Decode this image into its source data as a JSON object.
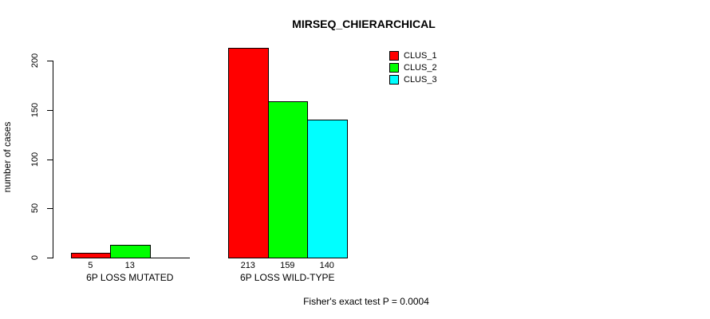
{
  "chart_data": {
    "type": "bar",
    "title": "MIRSEQ_CHIERARCHICAL",
    "ylabel": "number of cases",
    "xlabel": "",
    "yticks": [
      0,
      50,
      100,
      150,
      200
    ],
    "ylim": [
      0,
      213
    ],
    "grid": false,
    "legend_position": "top-right",
    "categories": [
      "6P LOSS MUTATED",
      "6P LOSS WILD-TYPE"
    ],
    "series": [
      {
        "name": "CLUS_1",
        "color": "#FF0000",
        "values": [
          5,
          213
        ]
      },
      {
        "name": "CLUS_2",
        "color": "#00FF00",
        "values": [
          13,
          159
        ]
      },
      {
        "name": "CLUS_3",
        "color": "#00FFFF",
        "values": [
          0,
          140
        ]
      }
    ],
    "bar_value_labels": [
      [
        "5",
        "13",
        ""
      ],
      [
        "213",
        "159",
        "140"
      ]
    ],
    "annotation": "Fisher's exact test P = 0.0004"
  },
  "colors": {
    "background": "#FFFFFF",
    "axis": "#000000",
    "text": "#000000"
  }
}
